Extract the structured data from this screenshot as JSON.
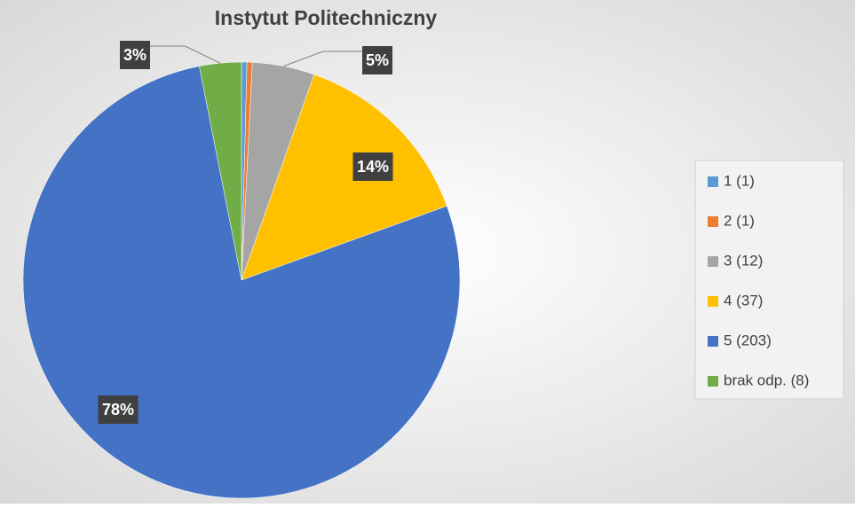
{
  "chart_data": {
    "type": "pie",
    "title": "Instytut Politechniczny",
    "categories": [
      "1 (1)",
      "2 (1)",
      "3 (12)",
      "4 (37)",
      "5 (203)",
      "brak odp. (8)"
    ],
    "values": [
      0.4,
      0.4,
      4.6,
      14.1,
      77.5,
      3.1
    ],
    "value_labels": [
      null,
      null,
      "5%",
      "14%",
      "78%",
      "3%"
    ],
    "colors": [
      "#5b9bd5",
      "#ed7d31",
      "#a5a5a5",
      "#ffc000",
      "#4472c4",
      "#70ad47"
    ],
    "legend": "right"
  }
}
